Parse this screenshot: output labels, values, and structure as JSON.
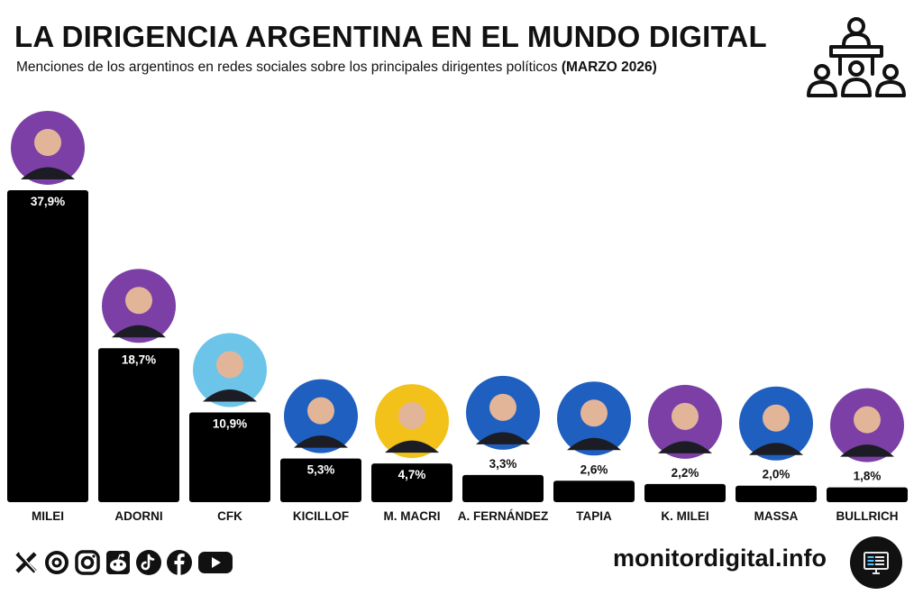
{
  "header": {
    "title": "LA DIRIGENCIA ARGENTINA EN EL MUNDO DIGITAL",
    "subtitle": "Menciones de los argentinos en redes sociales sobre los principales dirigentes políticos ",
    "subtitle_bold": "(MARZO 2026)"
  },
  "chart_data": {
    "type": "bar",
    "title": "LA DIRIGENCIA ARGENTINA EN EL MUNDO DIGITAL",
    "subtitle": "Menciones de los argentinos en redes sociales sobre los principales dirigentes políticos (MARZO 2026)",
    "xlabel": "",
    "ylabel": "",
    "ylim": [
      0,
      40
    ],
    "categories": [
      "MILEI",
      "ADORNI",
      "CFK",
      "KICILLOF",
      "M. MACRI",
      "A. FERNÁNDEZ",
      "TAPIA",
      "K. MILEI",
      "MASSA",
      "BULLRICH"
    ],
    "values": [
      37.9,
      18.7,
      10.9,
      5.3,
      4.7,
      3.3,
      2.6,
      2.2,
      2.0,
      1.8
    ],
    "labels": [
      "37,9%",
      "18,7%",
      "10,9%",
      "5,3%",
      "4,7%",
      "3,3%",
      "2,6%",
      "2,2%",
      "2,0%",
      "1,8%"
    ],
    "avatar_colors": [
      "#7b3fa6",
      "#7b3fa6",
      "#6cc4e8",
      "#1f5fbf",
      "#f2c21a",
      "#1f5fbf",
      "#1f5fbf",
      "#7b3fa6",
      "#1f5fbf",
      "#7b3fa6"
    ],
    "bar_color": "#000000",
    "label_color_inside": "#ffffff",
    "label_color_outside": "#111111"
  },
  "footer": {
    "site": "monitordigital.info",
    "socials": [
      "x-icon",
      "threads-icon",
      "instagram-icon",
      "reddit-icon",
      "tiktok-icon",
      "facebook-icon",
      "youtube-icon"
    ]
  }
}
